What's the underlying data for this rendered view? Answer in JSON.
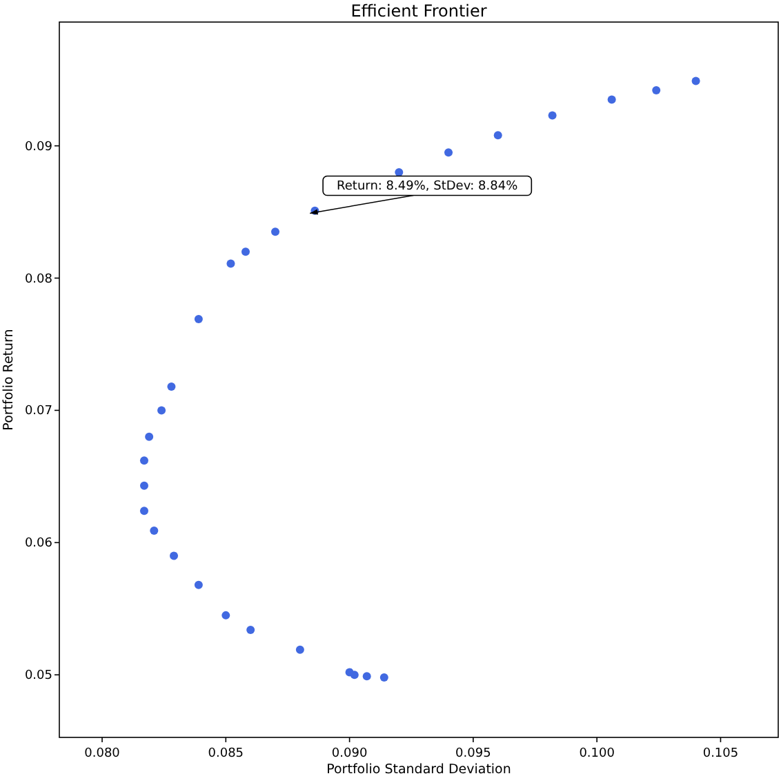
{
  "chart_data": {
    "type": "scatter",
    "title": "Efficient Frontier",
    "xlabel": "Portfolio Standard Deviation",
    "ylabel": "Portfolio Return",
    "x": [
      0.0914,
      0.0907,
      0.0902,
      0.09,
      0.088,
      0.086,
      0.085,
      0.0839,
      0.0829,
      0.0821,
      0.0817,
      0.0817,
      0.0817,
      0.0819,
      0.0824,
      0.0828,
      0.0839,
      0.0852,
      0.0858,
      0.087,
      0.0886,
      0.092,
      0.094,
      0.096,
      0.0982,
      0.1006,
      0.1024,
      0.104
    ],
    "series": [
      {
        "color": "#4169e1",
        "values": [
          0.0498,
          0.0499,
          0.05,
          0.0502,
          0.0519,
          0.0534,
          0.0545,
          0.0568,
          0.059,
          0.0609,
          0.0624,
          0.0643,
          0.0662,
          0.068,
          0.07,
          0.0718,
          0.0769,
          0.0811,
          0.082,
          0.0835,
          0.0851,
          0.088,
          0.0895,
          0.0908,
          0.0923,
          0.0935,
          0.0942,
          0.0949
        ]
      }
    ],
    "annotations": [
      {
        "text": "Return: 8.49%, StDev: 8.84%",
        "x": 0.0884,
        "y": 0.0849
      }
    ],
    "xlim": [
      0.07827,
      0.10733
    ],
    "ylim": [
      0.04527,
      0.09936
    ],
    "xticks": [
      {
        "value": 0.08,
        "label": "0.080"
      },
      {
        "value": 0.085,
        "label": "0.085"
      },
      {
        "value": 0.09,
        "label": "0.090"
      },
      {
        "value": 0.095,
        "label": "0.095"
      },
      {
        "value": 0.1,
        "label": "0.100"
      },
      {
        "value": 0.105,
        "label": "0.105"
      }
    ],
    "yticks": [
      {
        "value": 0.05,
        "label": "0.05"
      },
      {
        "value": 0.06,
        "label": "0.06"
      },
      {
        "value": 0.07,
        "label": "0.07"
      },
      {
        "value": 0.08,
        "label": "0.08"
      },
      {
        "value": 0.09,
        "label": "0.09"
      }
    ],
    "marker": "circle",
    "grid": false
  }
}
